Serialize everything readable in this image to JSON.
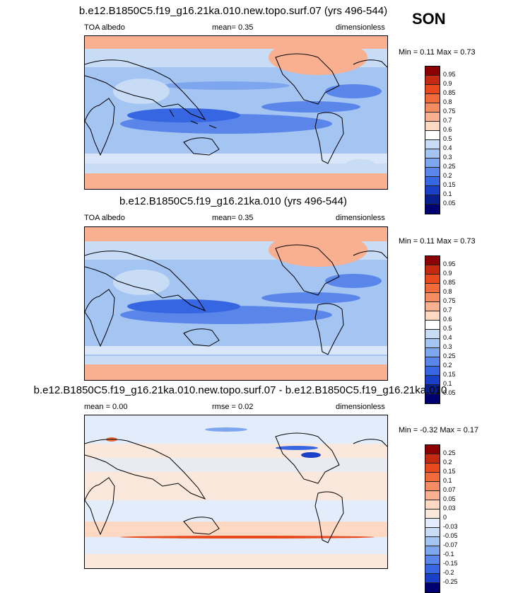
{
  "season": "SON",
  "panels": [
    {
      "title": "b.e12.B1850C5.f19_g16.21ka.010.new.topo.surf.07 (yrs 496-544)",
      "left_label": "TOA albedo",
      "center_label": "mean=  0.35",
      "right_label": "dimensionless",
      "minmax": "Min =   0.11 Max =   0.73",
      "colorbar_labels": [
        "0.95",
        "0.9",
        "0.85",
        "0.8",
        "0.75",
        "0.7",
        "0.6",
        "0.5",
        "0.4",
        "0.3",
        "0.25",
        "0.2",
        "0.15",
        "0.1",
        "0.05"
      ]
    },
    {
      "title": "b.e12.B1850C5.f19_g16.21ka.010 (yrs 496-544)",
      "left_label": "TOA albedo",
      "center_label": "mean=  0.35",
      "right_label": "dimensionless",
      "minmax": "Min =  0.11 Max =   0.73",
      "colorbar_labels": [
        "0.95",
        "0.9",
        "0.85",
        "0.8",
        "0.75",
        "0.7",
        "0.6",
        "0.5",
        "0.4",
        "0.3",
        "0.25",
        "0.2",
        "0.15",
        "0.1",
        "0.05"
      ]
    },
    {
      "title": "b.e12.B1850C5.f19_g16.21ka.010.new.topo.surf.07 - b.e12.B1850C5.f19_g16.21ka.010",
      "left_label": "mean =   0.00",
      "center_label": "rmse =   0.02",
      "right_label": "dimensionless",
      "minmax": "Min =  -0.32 Max =   0.17",
      "colorbar_labels": [
        "0.25",
        "0.2",
        "0.15",
        "0.1",
        "0.07",
        "0.05",
        "0.03",
        "0",
        "-0.03",
        "-0.05",
        "-0.07",
        "-0.1",
        "-0.15",
        "-0.2",
        "-0.25"
      ]
    }
  ],
  "colors": {
    "abs_scale": [
      "#8b0000",
      "#c42a10",
      "#e84a1e",
      "#f06a3c",
      "#f58c62",
      "#f9b090",
      "#fdd8c2",
      "#ffffff",
      "#c8dcf6",
      "#a4c4f2",
      "#7ea6ee",
      "#5a86ea",
      "#3666e2",
      "#1a40c8",
      "#0a1f8f",
      "#000070"
    ],
    "diff_scale": [
      "#8b0000",
      "#c42a10",
      "#e84a1e",
      "#f06a3c",
      "#f58c62",
      "#f9b090",
      "#fdd8c2",
      "#fbe8dc",
      "#e2ecfb",
      "#c8dcf6",
      "#a4c4f2",
      "#7ea6ee",
      "#5a86ea",
      "#3666e2",
      "#1a40c8",
      "#000070"
    ]
  }
}
